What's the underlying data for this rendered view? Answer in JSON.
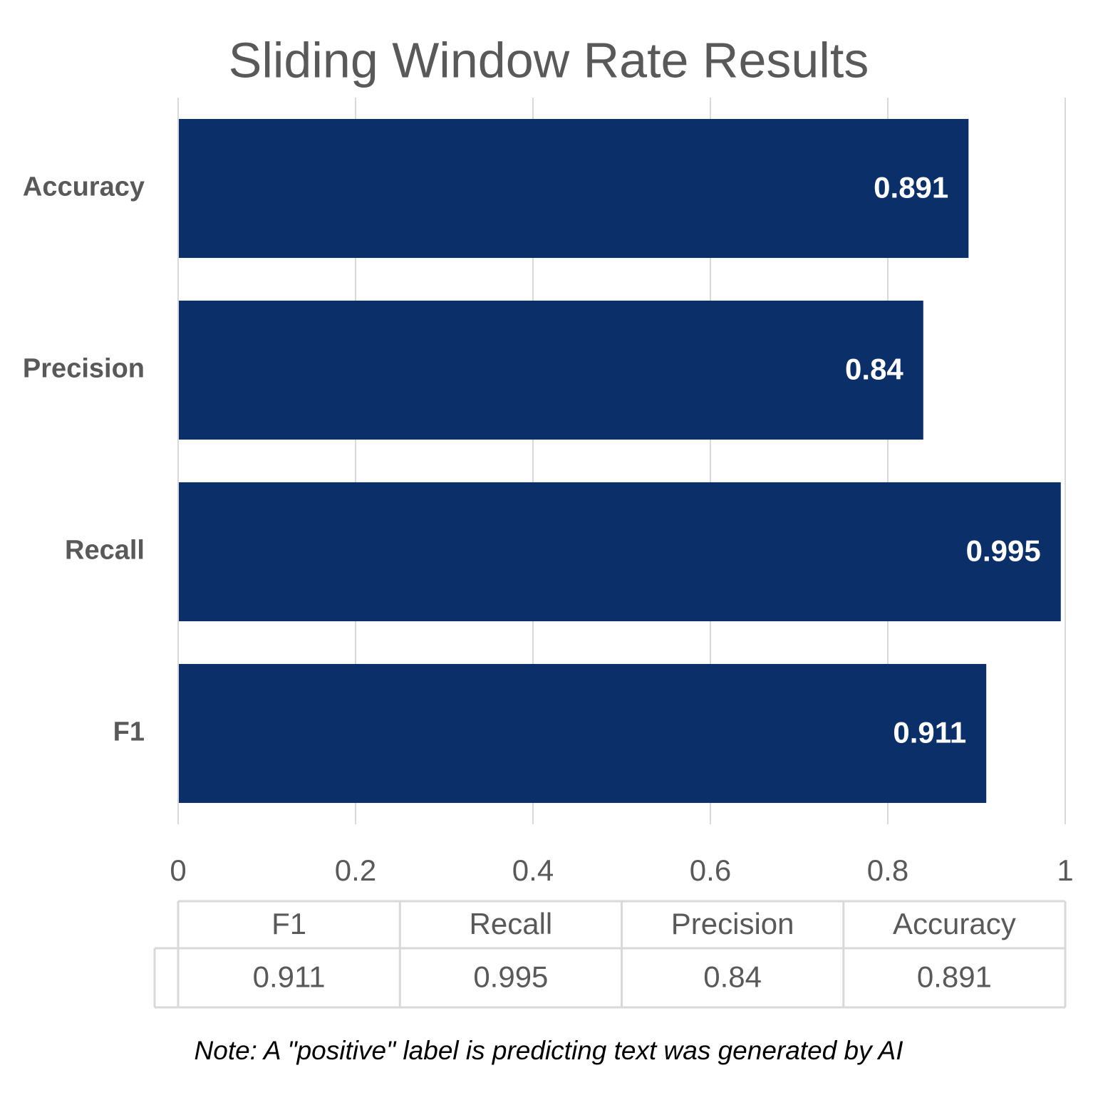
{
  "chart_data": {
    "type": "bar",
    "orientation": "horizontal",
    "title": "Sliding Window Rate Results",
    "categories": [
      "F1",
      "Recall",
      "Precision",
      "Accuracy"
    ],
    "values": [
      0.911,
      0.995,
      0.84,
      0.891
    ],
    "color": "#0b3069",
    "xlim": [
      0,
      1
    ],
    "xticks": [
      0,
      0.2,
      0.4,
      0.6,
      0.8,
      1
    ],
    "grid": true,
    "data_table": true,
    "annotation": "Note: A \"positive\" label is predicting text was generated by AI"
  }
}
